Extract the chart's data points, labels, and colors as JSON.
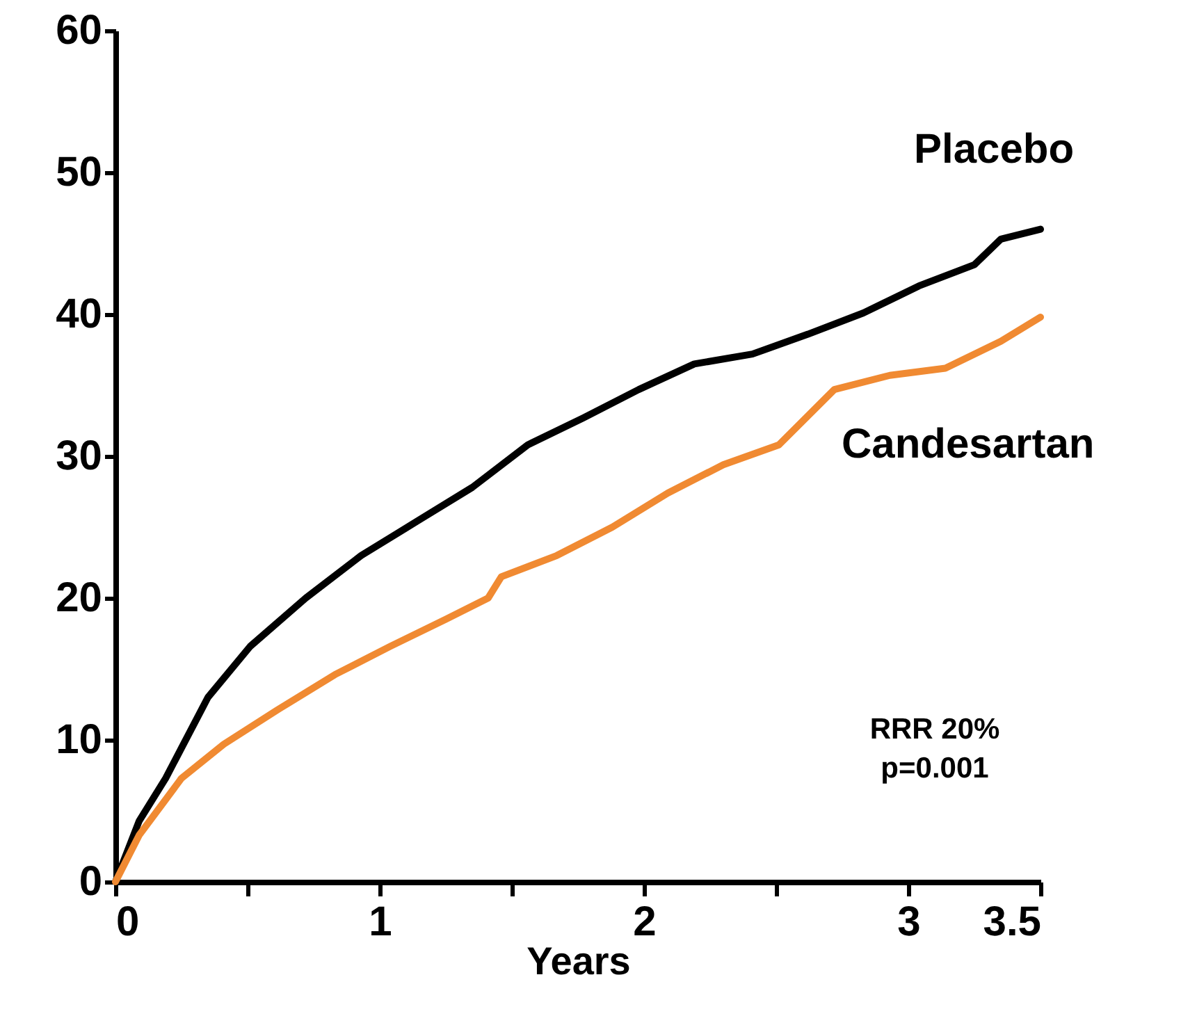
{
  "chart_data": {
    "type": "line",
    "xlabel": "Years",
    "x": [
      0,
      0.09,
      0.19,
      0.35,
      0.51,
      0.72,
      0.93,
      1.14,
      1.35,
      1.56,
      1.77,
      1.98,
      2.19,
      2.41,
      2.62,
      2.83,
      3.04,
      3.25,
      3.35,
      3.5
    ],
    "series": [
      {
        "name": "Placebo",
        "color": "#000000",
        "values": [
          0,
          4.3,
          7.3,
          13,
          16.6,
          20,
          23,
          25.4,
          27.8,
          30.8,
          32.7,
          34.7,
          36.5,
          37.2,
          38.6,
          40.1,
          42,
          43.5,
          45.3,
          46
        ]
      },
      {
        "name": "Candesartan",
        "color": "#f08a32",
        "x": [
          0,
          0.09,
          0.25,
          0.41,
          0.62,
          0.83,
          1.04,
          1.25,
          1.41,
          1.46,
          1.67,
          1.88,
          2.09,
          2.3,
          2.51,
          2.72,
          2.93,
          3.14,
          3.35,
          3.5
        ],
        "values": [
          0,
          3.3,
          7.3,
          9.7,
          12.2,
          14.6,
          16.6,
          18.5,
          20,
          21.5,
          23,
          25,
          27.4,
          29.4,
          30.8,
          34.7,
          35.7,
          36.2,
          38.1,
          39.8
        ]
      }
    ],
    "xlim": [
      0,
      3.5
    ],
    "xticks": [
      0,
      {
        "value": 0.5,
        "label": null
      },
      1,
      {
        "value": 1.5,
        "label": null
      },
      2,
      {
        "value": 2.5,
        "label": null
      },
      3,
      3.5
    ],
    "ylim": [
      0,
      60
    ],
    "yticks": [
      0,
      10,
      20,
      30,
      40,
      50,
      60
    ],
    "annotations": [
      "RRR 20%",
      "p=0.001"
    ],
    "line_style": "solid",
    "grid": false
  }
}
